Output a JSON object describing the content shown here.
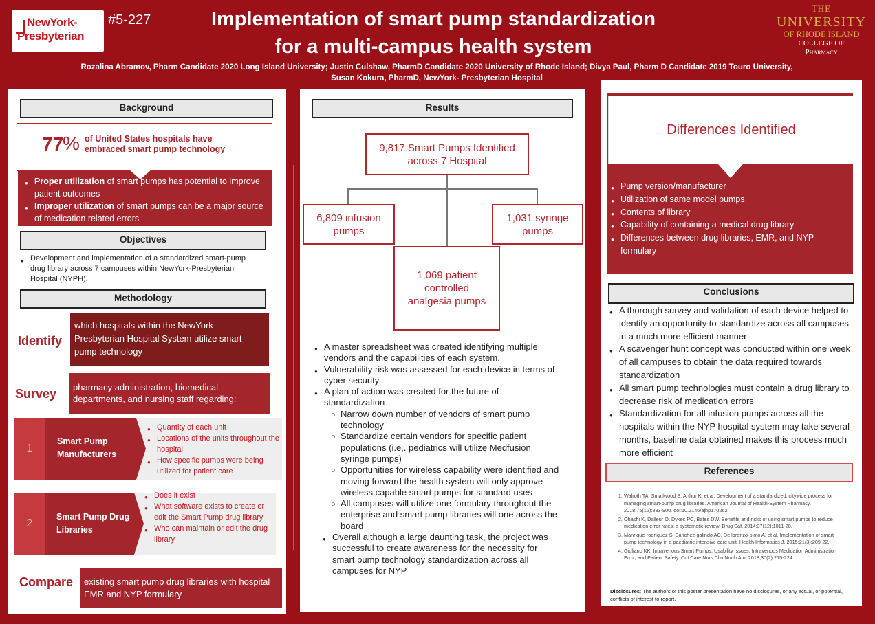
{
  "header": {
    "nyp_logo_line1": "NewYork-",
    "nyp_logo_line2": "Presbyterian",
    "poster_id": "#5-227",
    "title_line1": "Implementation of smart pump standardization",
    "title_line2": "for a multi-campus health system",
    "authors_line1": "Rozalina Abramov, Pharm Candidate 2020 Long Island University; Justin Culshaw, PharmD Candidate 2020 University of Rhode Island; Divya Paul, Pharm D Candidate 2019 Touro University,",
    "authors_line2": "Susan Kokura, PharmD, NewYork- Presbyterian Hospital",
    "uri_line1": "THE",
    "uri_line2": "UNIVERSITY",
    "uri_line3": "OF RHODE ISLAND",
    "uri_line4": "COLLEGE OF",
    "uri_line5": "Pharmacy"
  },
  "background": {
    "heading": "Background",
    "stat_number": "77",
    "stat_unit": "%",
    "stat_text": "of United States hospitals have embraced smart pump technology",
    "b1_bold": "Proper utilization",
    "b1_rest": " of smart pumps has potential to improve patient outcomes",
    "b2_bold": "Improper utilization",
    "b2_rest": " of smart pumps can be a major source of medication related errors"
  },
  "objectives": {
    "heading": "Objectives",
    "item": "Development and implementation of a standardized smart-pump drug library across 7 campuses within NewYork-Presbyterian Hospital (NYPH)."
  },
  "methodology": {
    "heading": "Methodology",
    "identify_label": "Identify",
    "identify_text": "which hospitals within the NewYork-Presbyterian Hospital System utilize smart pump technology",
    "survey_label": "Survey",
    "survey_text": "pharmacy administration, biomedical departments, and nursing staff regarding:",
    "step1_num": "1",
    "step1_title": "Smart Pump Manufacturers",
    "step1_items": [
      "Quantity of each unit",
      "Locations of the units throughout the hospital",
      "How specific pumps were being utilized for patient care"
    ],
    "step2_num": "2",
    "step2_title": "Smart Pump Drug Libraries",
    "step2_items": [
      "Does it exist",
      "What software exists to create or edit the Smart Pump drug library",
      "Who can maintain or edit the drug library"
    ],
    "compare_label": "Compare",
    "compare_text": "existing smart pump drug libraries with hospital EMR and NYP formulary"
  },
  "results": {
    "heading": "Results",
    "total": "9,817 Smart Pumps Identified across 7 Hospital",
    "infusion": "6,809 infusion pumps",
    "syringe": "1,031 syringe pumps",
    "pca": "1,069 patient controlled analgesia pumps",
    "r1": "A master spreadsheet was created identifying multiple vendors and the capabilities of each system.",
    "r2": "Vulnerability risk was assessed for each device in terms of cyber security",
    "r3": "A plan of action was created for the future of standardization",
    "r3_subs": [
      "Narrow down number of vendors of smart pump technology",
      "Standardize certain vendors for specific patient populations (i.e,. pediatrics will utilize Medfusion syringe pumps)",
      "Opportunities for wireless capability were identified and moving forward the health system will only approve wireless capable smart pumps for standard uses",
      "All campuses will utilize one formulary throughout the enterprise and smart pump libraries will one  across the board"
    ],
    "r4": "Overall although a large daunting task, the project was successful to create awareness for the necessity for smart pump technology standardization across all campuses for NYP"
  },
  "differences": {
    "heading": "Differences Identified",
    "items": [
      "Pump version/manufacturer",
      "Utilization of same model pumps",
      "Contents of library",
      "Capability of containing a medical drug library",
      "Differences between drug libraries, EMR, and NYP formulary"
    ]
  },
  "conclusions": {
    "heading": "Conclusions",
    "items": [
      "A thorough survey and validation of each device helped to identify an opportunity to standardize across all campuses in a much more efficient manner",
      " A scavenger hunt concept was conducted within one week of all campuses to obtain the data required towards standardization",
      "All smart pump technologies must contain a drug library to decrease risk of medication errors",
      "Standardization for all infusion pumps across all the hospitals within the NYP hospital system may take several months, baseline data obtained  makes this process much more efficient"
    ]
  },
  "references": {
    "heading": "References",
    "items": [
      "Walroth TA, Smallwood S, Arthur K, et al. Development of a standardized, citywide process for managing smart-pump drug libraries. American Journal of Health-System Pharmacy. 2018;75(12):893-900. doi:10.2146/ajhp170262.",
      "Ohashi K, Dalleur O, Dykes PC, Bates DW. Benefits and risks of using smart pumps to reduce medication error rates: a systematic review. Drug Saf. 2014;37(12):1011-20.",
      "Manrique-rodríguez S, Sánchez-galindo AC, De lorenzo-pinto A, et al. Implementation of smart pump technology in a paediatric intensive care unit. Health Informatics J. 2015;21(3):209-22.",
      "Giuliano KK. Intravenous Smart Pumps: Usability Issues, Intravenous Medication Administration Error, and Patient Safety. Crit Care Nurs Clin North Am. 2018;30(2):215-224."
    ],
    "disclosures_label": "Disclosures",
    "disclosures_text": ": The authors of this poster presentation have no disclosures, or any actual, or potential, conflicts of interest to report."
  },
  "colors": {
    "background": "#9c1018",
    "accent": "#a4262c",
    "dark": "#7f1d1d",
    "uri_gold": "#d8b04a"
  }
}
